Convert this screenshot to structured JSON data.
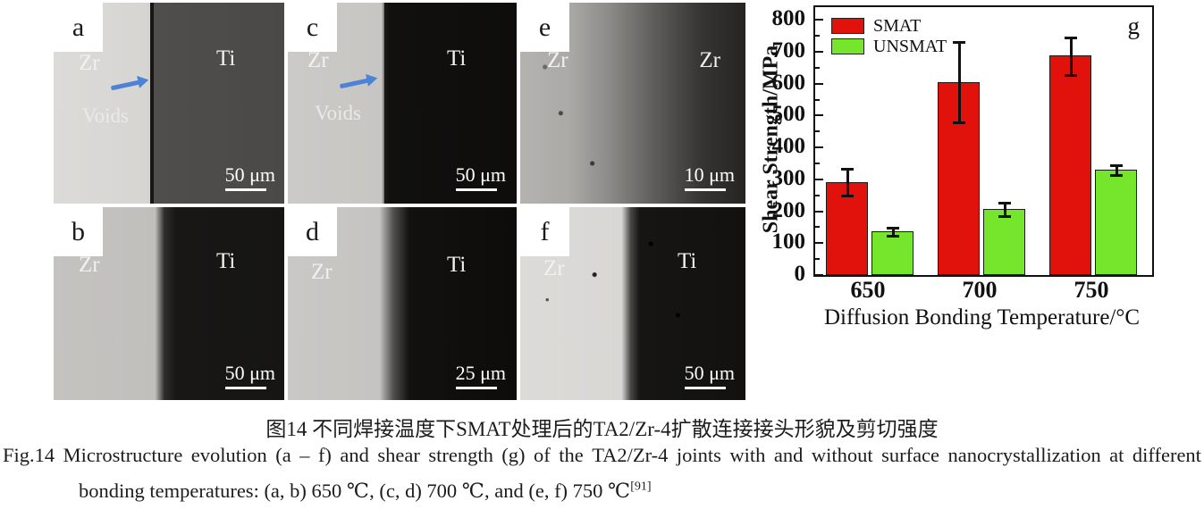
{
  "colors": {
    "arrow_blue": "#4d82d6",
    "bar_red": "#e0120b",
    "bar_green": "#76e62c"
  },
  "panels": [
    {
      "label": "a",
      "region_left": "Zr",
      "region_right": "Ti",
      "annotation": "Voids",
      "arrow": "interface-arrow",
      "scale": "50 μm"
    },
    {
      "label": "b",
      "region_left": "Zr",
      "region_right": "Ti",
      "scale": "50 μm"
    },
    {
      "label": "c",
      "region_left": "Zr",
      "region_right": "Ti",
      "annotation": "Voids",
      "arrow": "interface-arrow",
      "scale": "50 μm"
    },
    {
      "label": "d",
      "region_left": "Zr",
      "region_right": "Ti",
      "scale": "25 μm"
    },
    {
      "label": "e",
      "region_left": "Zr",
      "region_right": "Zr",
      "scale": "10 μm"
    },
    {
      "label": "f",
      "region_left": "Zr",
      "region_right": "Ti",
      "scale": "50 μm"
    }
  ],
  "chart_data": {
    "type": "bar",
    "panel_label": "g",
    "categories": [
      "650",
      "700",
      "750"
    ],
    "series": [
      {
        "name": "SMAT",
        "color": "#e0120b",
        "values": [
          290,
          605,
          688
        ],
        "err_low": [
          250,
          480,
          628
        ],
        "err_high": [
          332,
          732,
          745
        ]
      },
      {
        "name": "UNSMAT",
        "color": "#76e62c",
        "values": [
          136,
          207,
          330
        ],
        "err_low": [
          122,
          186,
          314
        ],
        "err_high": [
          148,
          228,
          344
        ]
      }
    ],
    "xlabel": "Diffusion Bonding Temperature/°C",
    "ylabel": "Shear Strength/MPa",
    "ylim": [
      0,
      840
    ],
    "yticks": [
      0,
      100,
      200,
      300,
      400,
      500,
      600,
      700,
      800
    ],
    "minor_tick_step": 50,
    "legend_position": "top-left",
    "grid": false
  },
  "caption": {
    "zh": "图14  不同焊接温度下SMAT处理后的TA2/Zr-4扩散连接接头形貌及剪切强度",
    "en_line1": "Fig.14  Microstructure evolution (a – f) and shear strength (g) of the TA2/Zr-4 joints with and without surface nanocrystallization at different",
    "en_line2": "bonding temperatures: (a, b) 650 ℃, (c, d) 700 ℃, and (e, f) 750 ℃",
    "reference": "[91]"
  }
}
